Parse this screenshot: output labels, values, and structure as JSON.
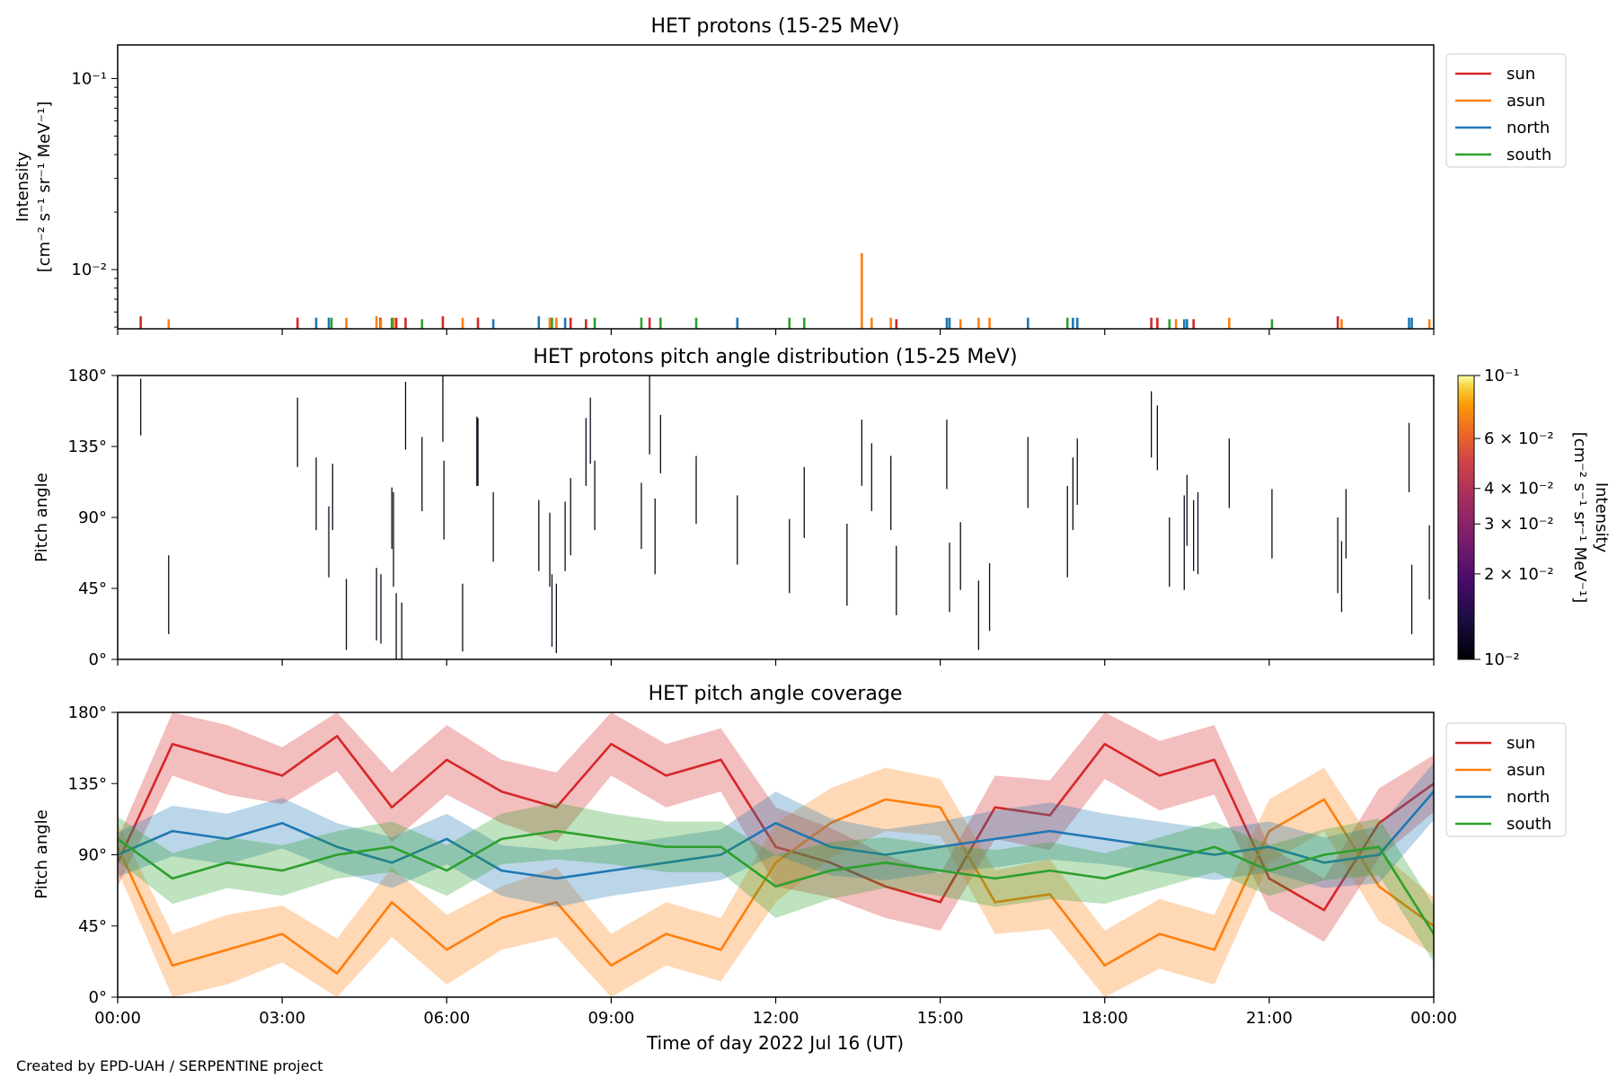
{
  "credit": "Created by EPD-UAH / SERPENTINE project",
  "xlabel": "Time of day 2022 Jul 16 (UT)",
  "xticks": [
    "00:00",
    "03:00",
    "06:00",
    "09:00",
    "12:00",
    "15:00",
    "18:00",
    "21:00",
    "00:00"
  ],
  "colors": {
    "sun": "#d62728",
    "asun": "#ff7f0e",
    "north": "#1f77b4",
    "south": "#2ca02c"
  },
  "chart_data": [
    {
      "type": "line",
      "title": "HET protons (15-25 MeV)",
      "ylabel": [
        "Intensity",
        "[cm⁻² s⁻¹ sr⁻¹ MeV⁻¹]"
      ],
      "yscale": "log",
      "ylim": [
        0.0049,
        0.15
      ],
      "yticks": [
        {
          "value": 0.1,
          "label": "10⁻¹"
        },
        {
          "value": 0.01,
          "label": "10⁻²"
        }
      ],
      "xlim_hours": [
        0,
        24
      ],
      "legend": {
        "placement": "outside-right-top",
        "entries": [
          "sun",
          "asun",
          "north",
          "south"
        ]
      },
      "series": [
        {
          "name": "sun",
          "color": "#d62728",
          "events": [
            {
              "t": 0.42,
              "v": 0.0057
            },
            {
              "t": 3.28,
              "v": 0.0056
            },
            {
              "t": 4.79,
              "v": 0.0056
            },
            {
              "t": 5.08,
              "v": 0.0056
            },
            {
              "t": 5.25,
              "v": 0.0056
            },
            {
              "t": 5.93,
              "v": 0.0057
            },
            {
              "t": 6.57,
              "v": 0.0056
            },
            {
              "t": 8.26,
              "v": 0.0056
            },
            {
              "t": 8.54,
              "v": 0.0055
            },
            {
              "t": 9.7,
              "v": 0.0056
            },
            {
              "t": 14.2,
              "v": 0.0055
            },
            {
              "t": 18.85,
              "v": 0.0056
            },
            {
              "t": 18.96,
              "v": 0.0056
            },
            {
              "t": 19.62,
              "v": 0.0055
            },
            {
              "t": 22.25,
              "v": 0.0057
            }
          ]
        },
        {
          "name": "asun",
          "color": "#ff7f0e",
          "events": [
            {
              "t": 0.93,
              "v": 0.0055
            },
            {
              "t": 4.17,
              "v": 0.0056
            },
            {
              "t": 4.72,
              "v": 0.0057
            },
            {
              "t": 4.8,
              "v": 0.0055
            },
            {
              "t": 5.03,
              "v": 0.0056
            },
            {
              "t": 6.29,
              "v": 0.0056
            },
            {
              "t": 7.88,
              "v": 0.0056
            },
            {
              "t": 8.0,
              "v": 0.0056
            },
            {
              "t": 13.57,
              "v": 0.0122
            },
            {
              "t": 13.75,
              "v": 0.0056
            },
            {
              "t": 14.1,
              "v": 0.0056
            },
            {
              "t": 15.37,
              "v": 0.0055
            },
            {
              "t": 15.7,
              "v": 0.0056
            },
            {
              "t": 15.9,
              "v": 0.0056
            },
            {
              "t": 19.3,
              "v": 0.0055
            },
            {
              "t": 20.27,
              "v": 0.0056
            },
            {
              "t": 22.32,
              "v": 0.0055
            },
            {
              "t": 23.92,
              "v": 0.0055
            }
          ]
        },
        {
          "name": "north",
          "color": "#1f77b4",
          "events": [
            {
              "t": 3.62,
              "v": 0.0056
            },
            {
              "t": 3.85,
              "v": 0.0056
            },
            {
              "t": 6.85,
              "v": 0.0055
            },
            {
              "t": 7.68,
              "v": 0.0057
            },
            {
              "t": 8.16,
              "v": 0.0056
            },
            {
              "t": 11.3,
              "v": 0.0056
            },
            {
              "t": 15.12,
              "v": 0.0056
            },
            {
              "t": 15.17,
              "v": 0.0056
            },
            {
              "t": 16.6,
              "v": 0.0056
            },
            {
              "t": 17.42,
              "v": 0.0056
            },
            {
              "t": 17.5,
              "v": 0.0056
            },
            {
              "t": 19.45,
              "v": 0.0055
            },
            {
              "t": 19.5,
              "v": 0.0055
            },
            {
              "t": 23.55,
              "v": 0.0056
            },
            {
              "t": 23.6,
              "v": 0.0056
            }
          ]
        },
        {
          "name": "south",
          "color": "#2ca02c",
          "events": [
            {
              "t": 3.9,
              "v": 0.0056
            },
            {
              "t": 5.0,
              "v": 0.0056
            },
            {
              "t": 5.55,
              "v": 0.0055
            },
            {
              "t": 7.92,
              "v": 0.0056
            },
            {
              "t": 8.7,
              "v": 0.0056
            },
            {
              "t": 9.55,
              "v": 0.0056
            },
            {
              "t": 9.9,
              "v": 0.0056
            },
            {
              "t": 10.55,
              "v": 0.0056
            },
            {
              "t": 12.25,
              "v": 0.0056
            },
            {
              "t": 12.52,
              "v": 0.0056
            },
            {
              "t": 17.32,
              "v": 0.0056
            },
            {
              "t": 19.18,
              "v": 0.0055
            },
            {
              "t": 21.05,
              "v": 0.0055
            }
          ]
        }
      ]
    },
    {
      "type": "heatmap",
      "title": "HET protons pitch angle distribution (15-25 MeV)",
      "ylabel": "Pitch angle",
      "ylim": [
        0,
        180
      ],
      "yticks": [
        "0°",
        "45°",
        "90°",
        "135°",
        "180°"
      ],
      "xlim_hours": [
        0,
        24
      ],
      "colorbar": {
        "label": [
          "Intensity",
          "[cm⁻² s⁻¹ sr⁻¹ MeV⁻¹]"
        ],
        "scale": "log",
        "range": [
          0.01,
          0.1
        ],
        "colormap": "inferno",
        "ticks": [
          {
            "value": 0.1,
            "label": "10⁻¹"
          },
          {
            "value": 0.06,
            "label": "6 × 10⁻²"
          },
          {
            "value": 0.04,
            "label": "4 × 10⁻²"
          },
          {
            "value": 0.03,
            "label": "3 × 10⁻²"
          },
          {
            "value": 0.02,
            "label": "2 × 10⁻²"
          },
          {
            "value": 0.01,
            "label": "10⁻²"
          }
        ]
      },
      "segments": [
        [
          0.42,
          142,
          178
        ],
        [
          0.93,
          16,
          66
        ],
        [
          3.28,
          122,
          166
        ],
        [
          3.62,
          82,
          128
        ],
        [
          3.85,
          52,
          97
        ],
        [
          3.92,
          82,
          124
        ],
        [
          4.17,
          6,
          51
        ],
        [
          4.72,
          12,
          58
        ],
        [
          4.8,
          10,
          54
        ],
        [
          5.0,
          70,
          109
        ],
        [
          5.03,
          46,
          106
        ],
        [
          5.08,
          0,
          42
        ],
        [
          5.18,
          0,
          36
        ],
        [
          5.25,
          133,
          176
        ],
        [
          5.55,
          94,
          141
        ],
        [
          5.93,
          138,
          180
        ],
        [
          5.95,
          76,
          126
        ],
        [
          6.29,
          5,
          48
        ],
        [
          6.55,
          110,
          154
        ],
        [
          6.57,
          110,
          153
        ],
        [
          6.85,
          62,
          106
        ],
        [
          7.68,
          56,
          101
        ],
        [
          7.88,
          46,
          93
        ],
        [
          7.92,
          8,
          54
        ],
        [
          8.0,
          4,
          48
        ],
        [
          8.16,
          56,
          100
        ],
        [
          8.26,
          66,
          115
        ],
        [
          8.54,
          110,
          153
        ],
        [
          8.62,
          124,
          166
        ],
        [
          8.7,
          82,
          126
        ],
        [
          9.55,
          70,
          112
        ],
        [
          9.7,
          130,
          180
        ],
        [
          9.8,
          54,
          102
        ],
        [
          9.9,
          118,
          155
        ],
        [
          10.55,
          86,
          129
        ],
        [
          11.3,
          60,
          104
        ],
        [
          12.25,
          42,
          89
        ],
        [
          12.52,
          77,
          122
        ],
        [
          13.3,
          34,
          86
        ],
        [
          13.57,
          110,
          152
        ],
        [
          13.75,
          94,
          137
        ],
        [
          14.1,
          82,
          129
        ],
        [
          14.2,
          28,
          72
        ],
        [
          15.12,
          108,
          152
        ],
        [
          15.17,
          30,
          74
        ],
        [
          15.37,
          44,
          87
        ],
        [
          15.7,
          6,
          50
        ],
        [
          15.9,
          18,
          61
        ],
        [
          16.6,
          96,
          141
        ],
        [
          17.32,
          52,
          110
        ],
        [
          17.42,
          82,
          128
        ],
        [
          17.5,
          98,
          140
        ],
        [
          18.85,
          128,
          170
        ],
        [
          18.96,
          120,
          161
        ],
        [
          19.18,
          46,
          90
        ],
        [
          19.45,
          44,
          104
        ],
        [
          19.5,
          72,
          117
        ],
        [
          19.62,
          56,
          101
        ],
        [
          19.7,
          54,
          106
        ],
        [
          20.27,
          96,
          140
        ],
        [
          21.05,
          64,
          108
        ],
        [
          22.25,
          42,
          90
        ],
        [
          22.32,
          30,
          75
        ],
        [
          22.4,
          64,
          108
        ],
        [
          23.55,
          106,
          150
        ],
        [
          23.6,
          16,
          60
        ],
        [
          23.92,
          38,
          85
        ]
      ]
    },
    {
      "type": "area",
      "title": "HET pitch angle coverage",
      "ylabel": "Pitch angle",
      "ylim": [
        0,
        180
      ],
      "yticks": [
        "0°",
        "45°",
        "90°",
        "135°",
        "180°"
      ],
      "xlim_hours": [
        0,
        24
      ],
      "legend": {
        "placement": "outside-right-top",
        "entries": [
          "sun",
          "asun",
          "north",
          "south"
        ]
      },
      "x_hours": [
        0,
        1,
        2,
        3,
        4,
        5,
        6,
        7,
        8,
        9,
        10,
        11,
        12,
        13,
        14,
        15,
        16,
        17,
        18,
        19,
        20,
        21,
        22,
        23,
        24
      ],
      "series": [
        {
          "name": "sun",
          "color": "#d62728",
          "values": [
            85,
            160,
            150,
            140,
            165,
            120,
            150,
            130,
            120,
            160,
            140,
            150,
            95,
            85,
            70,
            60,
            120,
            115,
            160,
            140,
            150,
            75,
            55,
            110,
            135
          ],
          "band_halfwidth": [
            15,
            20,
            22,
            18,
            22,
            22,
            22,
            20,
            22,
            20,
            20,
            20,
            25,
            22,
            20,
            18,
            20,
            22,
            22,
            22,
            22,
            20,
            20,
            22,
            18
          ]
        },
        {
          "name": "asun",
          "color": "#ff7f0e",
          "values": [
            95,
            20,
            30,
            40,
            15,
            60,
            30,
            50,
            60,
            20,
            40,
            30,
            85,
            110,
            125,
            120,
            60,
            65,
            20,
            40,
            30,
            105,
            125,
            70,
            45
          ],
          "band_halfwidth": [
            15,
            20,
            22,
            18,
            22,
            22,
            22,
            20,
            22,
            20,
            20,
            20,
            25,
            22,
            20,
            18,
            20,
            22,
            22,
            22,
            22,
            20,
            20,
            22,
            18
          ]
        },
        {
          "name": "north",
          "color": "#1f77b4",
          "values": [
            90,
            105,
            100,
            110,
            95,
            85,
            100,
            80,
            75,
            80,
            85,
            90,
            110,
            95,
            90,
            95,
            100,
            105,
            100,
            95,
            90,
            95,
            85,
            90,
            130
          ],
          "band_halfwidth": [
            14,
            16,
            16,
            16,
            15,
            16,
            16,
            16,
            18,
            16,
            16,
            16,
            20,
            18,
            16,
            16,
            18,
            18,
            16,
            16,
            16,
            16,
            16,
            18,
            18
          ]
        },
        {
          "name": "south",
          "color": "#2ca02c",
          "values": [
            100,
            75,
            85,
            80,
            90,
            95,
            80,
            100,
            105,
            100,
            95,
            95,
            70,
            80,
            85,
            80,
            75,
            80,
            75,
            85,
            95,
            80,
            90,
            95,
            40
          ],
          "band_halfwidth": [
            14,
            16,
            16,
            16,
            15,
            16,
            16,
            16,
            18,
            16,
            16,
            16,
            20,
            18,
            16,
            16,
            18,
            18,
            16,
            16,
            16,
            16,
            16,
            18,
            18
          ]
        }
      ]
    }
  ]
}
